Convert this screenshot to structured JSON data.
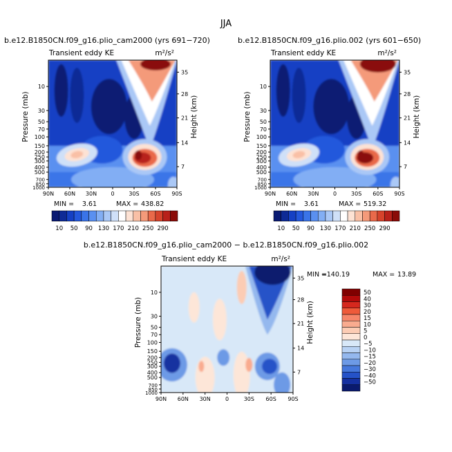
{
  "chart_data": {
    "type": "contour",
    "title": "JJA",
    "panels": [
      {
        "id": "cam2000",
        "title": "b.e12.B1850CN.f09_g16.plio_cam2000 (yrs 691−720)",
        "left_label": "Transient eddy KE",
        "units_label": "m²/s²",
        "ylabel": "Pressure (mb)",
        "ylabel_right": "Height (km)",
        "min_label": "MIN =",
        "min_value": "3.61",
        "max_label": "MAX =",
        "max_value": "438.82",
        "x_ticks": [
          "90N",
          "60N",
          "30N",
          "0",
          "30S",
          "60S",
          "90S"
        ],
        "xlim": [
          90,
          -90
        ],
        "pressure_ticks": [
          "10",
          "30",
          "50",
          "70",
          "100",
          "150",
          "200",
          "250",
          "300",
          "400",
          "500",
          "700",
          "850",
          "1000"
        ],
        "height_ticks": [
          "35",
          "28",
          "21",
          "14",
          "7"
        ],
        "features": [
          {
            "name": "southern-stratospheric-jet",
            "lat": -55,
            "pressure_mb": 5,
            "value": 290
          },
          {
            "name": "southern-tropospheric-maximum",
            "lat": -45,
            "pressure_mb": 250,
            "value": 290
          },
          {
            "name": "northern-tropospheric-maximum",
            "lat": 45,
            "pressure_mb": 250,
            "value": 170
          },
          {
            "name": "tropical-upper-minimum",
            "lat": 0,
            "pressure_mb": 30,
            "value": 10
          }
        ]
      },
      {
        "id": "plio002",
        "title": "b.e12.B1850CN.f09_g16.plio.002 (yrs 601−650)",
        "left_label": "Transient eddy KE",
        "units_label": "m²/s²",
        "ylabel": "Pressure (mb)",
        "ylabel_right": "Height (km)",
        "min_label": "MIN =",
        "min_value": "3.61",
        "max_label": "MAX =",
        "max_value": "519.32",
        "x_ticks": [
          "90N",
          "60N",
          "30N",
          "0",
          "30S",
          "60S",
          "90S"
        ],
        "xlim": [
          90,
          -90
        ],
        "pressure_ticks": [
          "10",
          "30",
          "50",
          "70",
          "100",
          "150",
          "200",
          "250",
          "300",
          "400",
          "500",
          "700",
          "850",
          "1000"
        ],
        "height_ticks": [
          "35",
          "28",
          "21",
          "14",
          "7"
        ],
        "features": [
          {
            "name": "southern-stratospheric-jet",
            "lat": -55,
            "pressure_mb": 5,
            "value": 290
          },
          {
            "name": "southern-tropospheric-maximum",
            "lat": -45,
            "pressure_mb": 250,
            "value": 290
          },
          {
            "name": "northern-tropospheric-maximum",
            "lat": 45,
            "pressure_mb": 250,
            "value": 170
          },
          {
            "name": "tropical-upper-minimum",
            "lat": 0,
            "pressure_mb": 30,
            "value": 10
          }
        ]
      },
      {
        "id": "difference",
        "title": "b.e12.B1850CN.f09_g16.plio_cam2000 − b.e12.B1850CN.f09_g16.plio.002",
        "left_label": "Transient eddy KE",
        "units_label": "m²/s²",
        "ylabel": "Pressure (mb)",
        "ylabel_right": "Height (km)",
        "min_label": "MIN =",
        "min_value": "−140.19",
        "max_label": "MAX =",
        "max_value": "13.89",
        "x_ticks": [
          "90N",
          "60N",
          "30N",
          "0",
          "30S",
          "60S",
          "90S"
        ],
        "xlim": [
          90,
          -90
        ],
        "pressure_ticks": [
          "10",
          "30",
          "50",
          "70",
          "100",
          "150",
          "200",
          "250",
          "300",
          "400",
          "500",
          "700",
          "850",
          "1000"
        ],
        "height_ticks": [
          "35",
          "28",
          "21",
          "14",
          "7"
        ],
        "features": [
          {
            "name": "southern-stratospheric-deficit",
            "lat": -55,
            "pressure_mb": 5,
            "value": -50
          },
          {
            "name": "southern-jet-deficit",
            "lat": -55,
            "pressure_mb": 300,
            "value": -30
          },
          {
            "name": "northern-polar-deficit",
            "lat": 75,
            "pressure_mb": 250,
            "value": -40
          }
        ]
      }
    ],
    "colorbars": [
      {
        "id": "abs",
        "orientation": "horizontal",
        "labels": [
          "10",
          "50",
          "90",
          "130",
          "170",
          "210",
          "250",
          "290"
        ],
        "levels": [
          10,
          30,
          50,
          70,
          90,
          110,
          130,
          150,
          170,
          190,
          210,
          230,
          250,
          270,
          290
        ],
        "colors": [
          "#0a1a73",
          "#0e2a96",
          "#1540c4",
          "#2458dc",
          "#3a74e8",
          "#5a90f0",
          "#82aef4",
          "#aac8f6",
          "#cfe0f8",
          "#ffffff",
          "#fde2d4",
          "#f9c0a6",
          "#f49a7a",
          "#e9694a",
          "#d6432c",
          "#b8211a",
          "#8a0b08"
        ]
      },
      {
        "id": "diff",
        "orientation": "vertical",
        "labels": [
          "50",
          "40",
          "30",
          "20",
          "15",
          "10",
          "5",
          "0",
          "−5",
          "−10",
          "−15",
          "−20",
          "−30",
          "−40",
          "−50"
        ],
        "levels": [
          -50,
          -40,
          -30,
          -20,
          -15,
          -10,
          -5,
          0,
          5,
          10,
          15,
          20,
          30,
          40,
          50
        ],
        "colors": [
          "#800000",
          "#b30a0a",
          "#d6281e",
          "#ee5a3a",
          "#f6866a",
          "#f9ab8f",
          "#fcccb4",
          "#fde6d8",
          "#d8e8f8",
          "#b8d2f4",
          "#94b8ee",
          "#6d9ae6",
          "#4678dc",
          "#2552c8",
          "#1530a0",
          "#0a1a6e"
        ]
      }
    ]
  }
}
